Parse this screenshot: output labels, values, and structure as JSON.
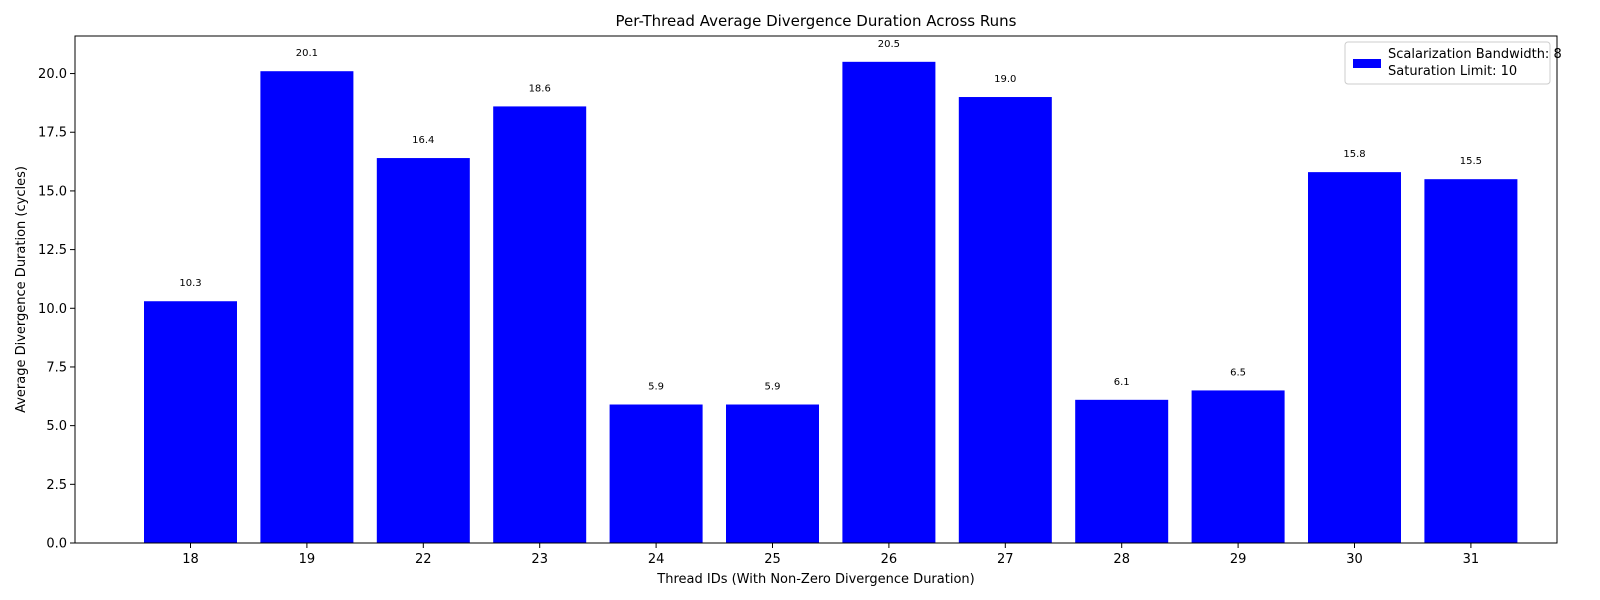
{
  "chart_data": {
    "type": "bar",
    "title": "Per-Thread Average Divergence Duration Across Runs",
    "xlabel": "Thread IDs (With Non-Zero Divergence Duration)",
    "ylabel": "Average Divergence Duration (cycles)",
    "categories": [
      "18",
      "19",
      "22",
      "23",
      "24",
      "25",
      "26",
      "27",
      "28",
      "29",
      "30",
      "31"
    ],
    "values": [
      10.3,
      20.1,
      16.4,
      18.6,
      5.9,
      5.9,
      20.5,
      19.0,
      6.1,
      6.5,
      15.8,
      15.5
    ],
    "value_labels": [
      "10.3",
      "20.1",
      "16.4",
      "18.6",
      "5.9",
      "5.9",
      "20.5",
      "19.0",
      "6.1",
      "6.5",
      "15.8",
      "15.5"
    ],
    "ylim": [
      0,
      21.6
    ],
    "yticks": [
      0,
      2.5,
      5,
      7.5,
      10,
      12.5,
      15,
      17.5,
      20
    ],
    "ytick_labels": [
      "0.0",
      "2.5",
      "5.0",
      "7.5",
      "10.0",
      "12.5",
      "15.0",
      "17.5",
      "20.0"
    ],
    "grid": false,
    "bar_color": "#0000ff",
    "legend": {
      "placement": "top-right",
      "entries": [
        "Scalarization Bandwidth: 8",
        "Saturation Limit: 10"
      ]
    }
  }
}
